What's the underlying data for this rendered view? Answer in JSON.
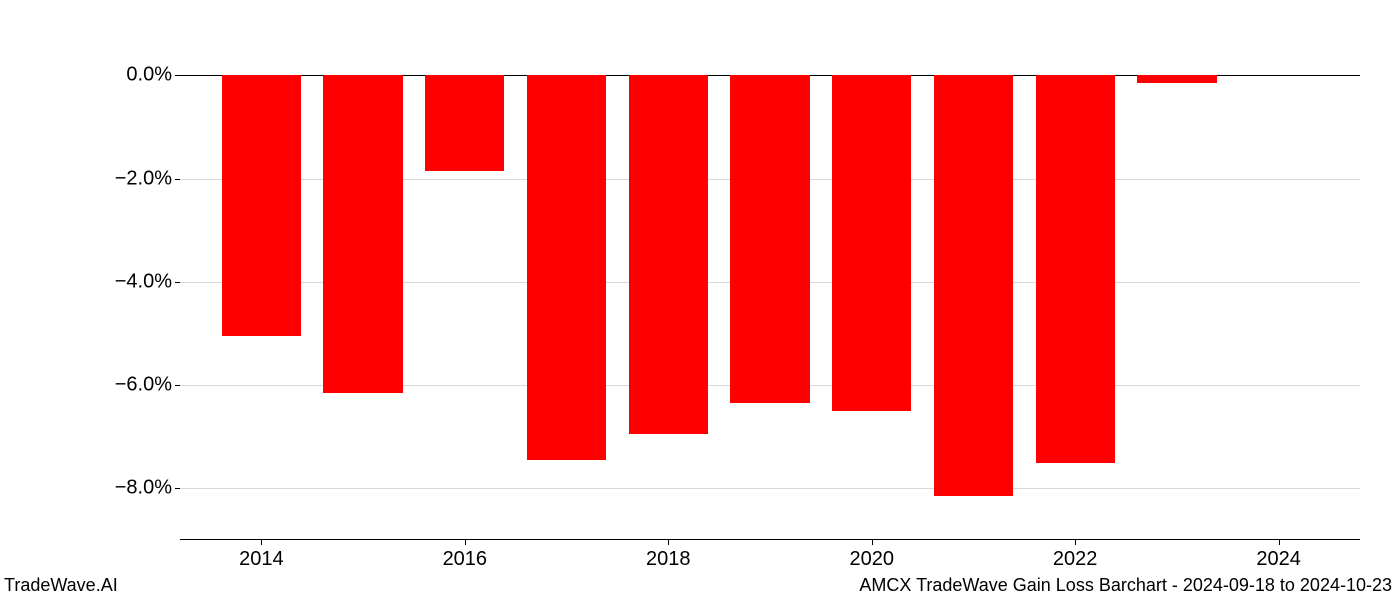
{
  "chart": {
    "type": "bar",
    "background_color": "#ffffff",
    "grid_color": "#d9d9d9",
    "axis_color": "#000000",
    "bar_color": "#ff0000",
    "bar_width": 0.78,
    "font_size_ticks": 20,
    "font_size_footer": 18,
    "ylim_min": -9.0,
    "ylim_max": 0.3,
    "y_ticks": [
      {
        "value": 0.0,
        "label": "0.0%"
      },
      {
        "value": -2.0,
        "label": "−2.0%"
      },
      {
        "value": -4.0,
        "label": "−4.0%"
      },
      {
        "value": -6.0,
        "label": "−6.0%"
      },
      {
        "value": -8.0,
        "label": "−8.0%"
      }
    ],
    "x_ticks": [
      {
        "value": 2014,
        "label": "2014"
      },
      {
        "value": 2016,
        "label": "2016"
      },
      {
        "value": 2018,
        "label": "2018"
      },
      {
        "value": 2020,
        "label": "2020"
      },
      {
        "value": 2022,
        "label": "2022"
      },
      {
        "value": 2024,
        "label": "2024"
      }
    ],
    "x_domain_min": 2013.2,
    "x_domain_max": 2024.8,
    "data": {
      "years": [
        2014,
        2015,
        2016,
        2017,
        2018,
        2019,
        2020,
        2021,
        2022,
        2023
      ],
      "values": [
        -5.05,
        -6.15,
        -1.85,
        -7.45,
        -6.95,
        -6.35,
        -6.5,
        -8.15,
        -7.5,
        -0.15
      ]
    },
    "footer_left": "TradeWave.AI",
    "footer_right": "AMCX TradeWave Gain Loss Barchart - 2024-09-18 to 2024-10-23"
  }
}
